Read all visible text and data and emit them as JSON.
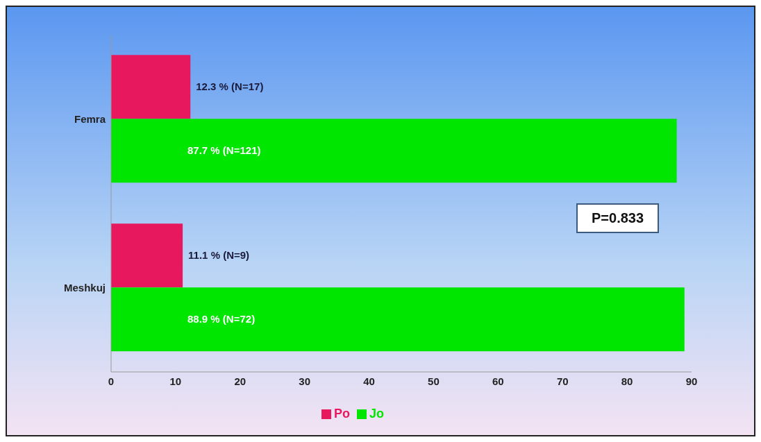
{
  "chart_data": {
    "type": "bar",
    "orientation": "horizontal",
    "categories": [
      "Femra",
      "Meshkuj"
    ],
    "series": [
      {
        "name": "Po",
        "color": "#e8185f",
        "values": [
          12.3,
          11.1
        ],
        "value_labels": [
          "12.3 %  (N=17)",
          "11.1 % (N=9)"
        ]
      },
      {
        "name": "Jo",
        "color": "#00e600",
        "values": [
          87.7,
          88.9
        ],
        "value_labels": [
          "87.7 % (N=121)",
          "88.9 % (N=72)"
        ]
      }
    ],
    "xlim": [
      0,
      90
    ],
    "xticks": [
      0,
      10,
      20,
      30,
      40,
      50,
      60,
      70,
      80,
      90
    ],
    "legend": "bottom",
    "annotations": [
      "P=0.833"
    ]
  }
}
